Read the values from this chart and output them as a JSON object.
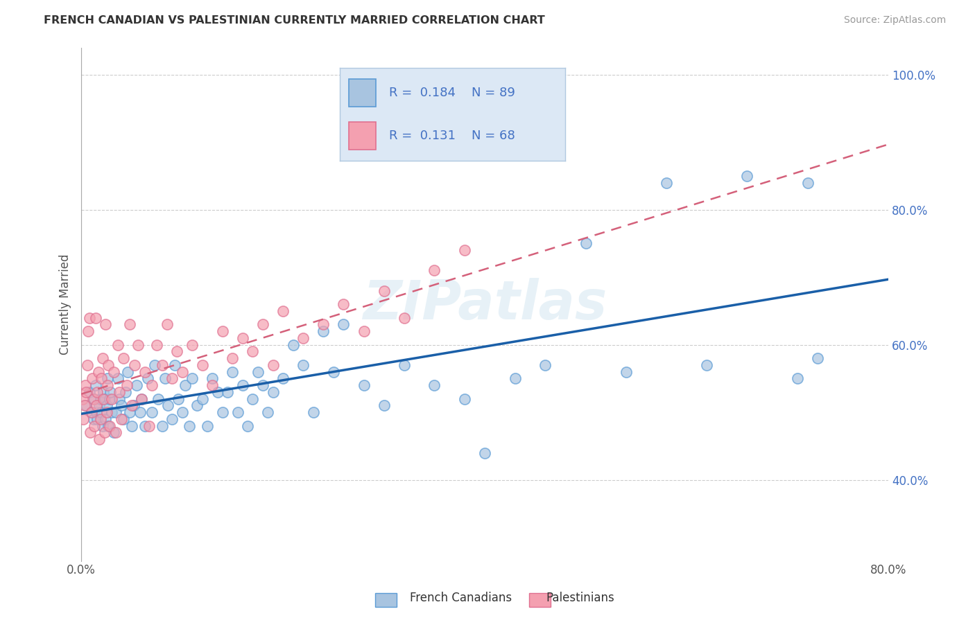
{
  "title": "FRENCH CANADIAN VS PALESTINIAN CURRENTLY MARRIED CORRELATION CHART",
  "source": "Source: ZipAtlas.com",
  "xlabel_blue": "French Canadians",
  "xlabel_pink": "Palestinians",
  "ylabel": "Currently Married",
  "xlim": [
    0.0,
    0.8
  ],
  "ylim": [
    0.28,
    1.04
  ],
  "xtick_labels": [
    "0.0%",
    "80.0%"
  ],
  "xtick_values": [
    0.0,
    0.8
  ],
  "ytick_labels": [
    "40.0%",
    "60.0%",
    "80.0%",
    "100.0%"
  ],
  "ytick_values": [
    0.4,
    0.6,
    0.8,
    1.0
  ],
  "r_blue": 0.184,
  "n_blue": 89,
  "r_pink": 0.131,
  "n_pink": 68,
  "blue_color": "#a8c4e0",
  "pink_color": "#f4a0b0",
  "blue_edge": "#5b9bd5",
  "pink_edge": "#e07090",
  "trendline_blue": "#1a5fa8",
  "trendline_pink": "#d4607a",
  "title_color": "#333333",
  "stat_color": "#4472c4",
  "watermark": "ZIPatlas",
  "blue_scatter_x": [
    0.005,
    0.008,
    0.01,
    0.012,
    0.013,
    0.014,
    0.015,
    0.016,
    0.018,
    0.019,
    0.02,
    0.021,
    0.022,
    0.023,
    0.024,
    0.025,
    0.026,
    0.027,
    0.028,
    0.029,
    0.03,
    0.032,
    0.034,
    0.036,
    0.038,
    0.04,
    0.042,
    0.044,
    0.046,
    0.048,
    0.05,
    0.052,
    0.055,
    0.058,
    0.06,
    0.063,
    0.066,
    0.07,
    0.073,
    0.076,
    0.08,
    0.083,
    0.086,
    0.09,
    0.093,
    0.096,
    0.1,
    0.103,
    0.107,
    0.11,
    0.115,
    0.12,
    0.125,
    0.13,
    0.135,
    0.14,
    0.145,
    0.15,
    0.155,
    0.16,
    0.165,
    0.17,
    0.175,
    0.18,
    0.185,
    0.19,
    0.2,
    0.21,
    0.22,
    0.23,
    0.24,
    0.25,
    0.26,
    0.28,
    0.3,
    0.32,
    0.35,
    0.38,
    0.4,
    0.43,
    0.46,
    0.5,
    0.54,
    0.58,
    0.62,
    0.66,
    0.71,
    0.72,
    0.73
  ],
  "blue_scatter_y": [
    0.51,
    0.53,
    0.5,
    0.49,
    0.52,
    0.54,
    0.5,
    0.49,
    0.51,
    0.52,
    0.5,
    0.48,
    0.53,
    0.52,
    0.49,
    0.51,
    0.55,
    0.48,
    0.52,
    0.53,
    0.5,
    0.47,
    0.5,
    0.55,
    0.52,
    0.51,
    0.49,
    0.53,
    0.56,
    0.5,
    0.48,
    0.51,
    0.54,
    0.5,
    0.52,
    0.48,
    0.55,
    0.5,
    0.57,
    0.52,
    0.48,
    0.55,
    0.51,
    0.49,
    0.57,
    0.52,
    0.5,
    0.54,
    0.48,
    0.55,
    0.51,
    0.52,
    0.48,
    0.55,
    0.53,
    0.5,
    0.53,
    0.56,
    0.5,
    0.54,
    0.48,
    0.52,
    0.56,
    0.54,
    0.5,
    0.53,
    0.55,
    0.6,
    0.57,
    0.5,
    0.62,
    0.56,
    0.63,
    0.54,
    0.51,
    0.57,
    0.54,
    0.52,
    0.44,
    0.55,
    0.57,
    0.75,
    0.56,
    0.84,
    0.57,
    0.85,
    0.55,
    0.84,
    0.58
  ],
  "pink_scatter_x": [
    0.001,
    0.002,
    0.003,
    0.004,
    0.005,
    0.006,
    0.007,
    0.008,
    0.009,
    0.01,
    0.011,
    0.012,
    0.013,
    0.014,
    0.015,
    0.016,
    0.017,
    0.018,
    0.019,
    0.02,
    0.021,
    0.022,
    0.023,
    0.024,
    0.025,
    0.026,
    0.027,
    0.028,
    0.03,
    0.032,
    0.034,
    0.036,
    0.038,
    0.04,
    0.042,
    0.045,
    0.048,
    0.05,
    0.053,
    0.056,
    0.06,
    0.063,
    0.067,
    0.07,
    0.075,
    0.08,
    0.085,
    0.09,
    0.095,
    0.1,
    0.11,
    0.12,
    0.13,
    0.14,
    0.15,
    0.16,
    0.17,
    0.18,
    0.19,
    0.2,
    0.22,
    0.24,
    0.26,
    0.28,
    0.3,
    0.32,
    0.35,
    0.38
  ],
  "pink_scatter_y": [
    0.52,
    0.49,
    0.51,
    0.54,
    0.53,
    0.57,
    0.62,
    0.64,
    0.47,
    0.5,
    0.55,
    0.52,
    0.48,
    0.64,
    0.51,
    0.53,
    0.56,
    0.46,
    0.49,
    0.55,
    0.58,
    0.52,
    0.47,
    0.63,
    0.5,
    0.54,
    0.57,
    0.48,
    0.52,
    0.56,
    0.47,
    0.6,
    0.53,
    0.49,
    0.58,
    0.54,
    0.63,
    0.51,
    0.57,
    0.6,
    0.52,
    0.56,
    0.48,
    0.54,
    0.6,
    0.57,
    0.63,
    0.55,
    0.59,
    0.56,
    0.6,
    0.57,
    0.54,
    0.62,
    0.58,
    0.61,
    0.59,
    0.63,
    0.57,
    0.65,
    0.61,
    0.63,
    0.66,
    0.62,
    0.68,
    0.64,
    0.71,
    0.74
  ],
  "grid_color": "#cccccc",
  "background_color": "#ffffff",
  "legend_box_color": "#dce8f5",
  "legend_edge_color": "#b0c8e0"
}
